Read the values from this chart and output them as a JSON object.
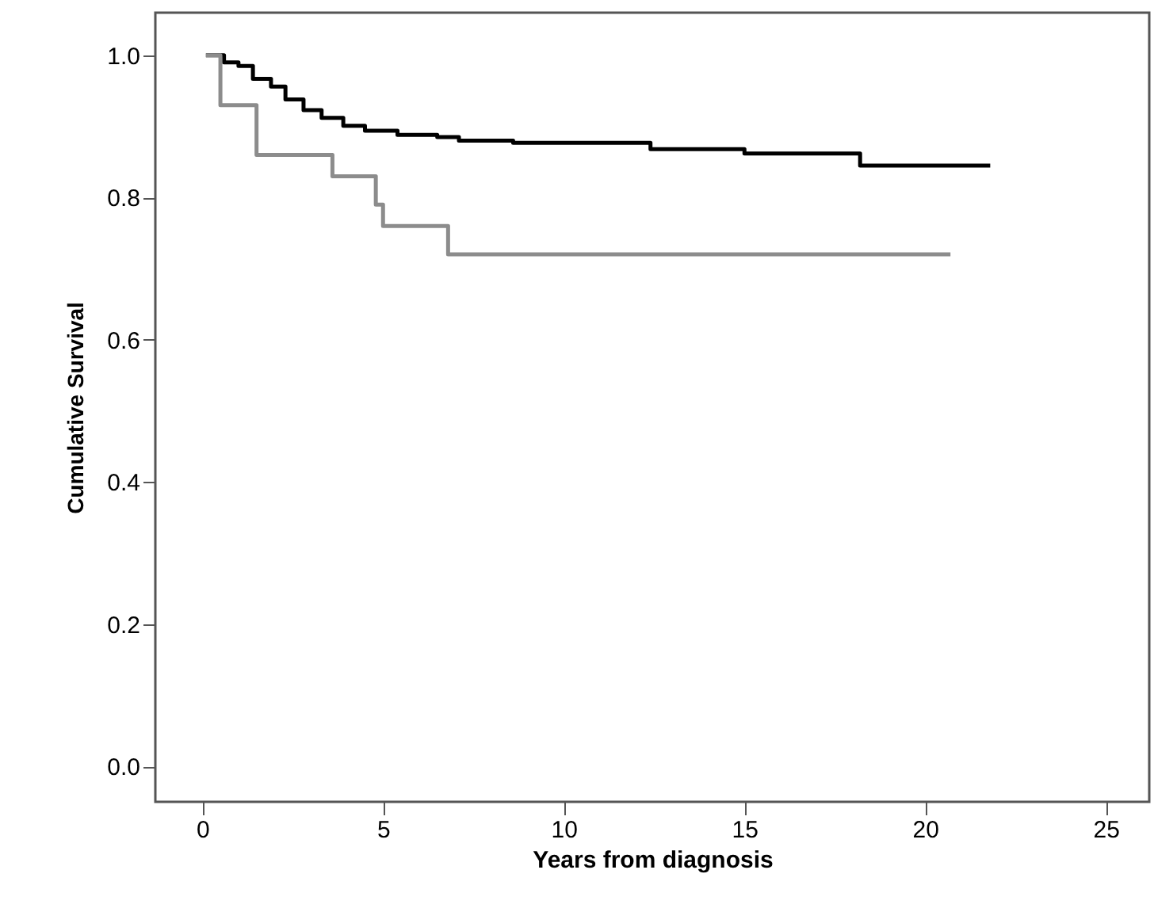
{
  "chart_data": {
    "type": "step",
    "xlabel": "Years from diagnosis",
    "ylabel": "Cumulative Survival",
    "xlim": [
      -1.3,
      26.2
    ],
    "ylim": [
      -0.05,
      1.06
    ],
    "xticks": [
      0,
      5,
      10,
      15,
      20,
      25
    ],
    "yticks": [
      {
        "value": 0,
        "label": "0.0"
      },
      {
        "value": 0.2,
        "label": "0.2"
      },
      {
        "value": 0.4,
        "label": "0.4"
      },
      {
        "value": 0.6,
        "label": "0.6"
      },
      {
        "value": 0.8,
        "label": "0.8"
      },
      {
        "value": 1,
        "label": "1.0"
      }
    ],
    "grid": false,
    "line_style": "solid",
    "series": [
      {
        "color": "#000000",
        "x": [
          0.1,
          0.6,
          1.0,
          1.4,
          1.9,
          2.3,
          2.8,
          3.3,
          3.9,
          4.5,
          5.4,
          6.5,
          7.1,
          8.6,
          12.4,
          15,
          18.2,
          21.8
        ],
        "values": [
          1.0,
          0.99,
          0.985,
          0.967,
          0.956,
          0.938,
          0.923,
          0.912,
          0.901,
          0.894,
          0.888,
          0.885,
          0.88,
          0.877,
          0.868,
          0.862,
          0.845,
          0.845
        ]
      },
      {
        "color": "#8c8c8c",
        "x": [
          0.1,
          0.5,
          1.5,
          3.6,
          4.8,
          5.0,
          6.8,
          20.7
        ],
        "values": [
          1.0,
          0.93,
          0.86,
          0.83,
          0.79,
          0.76,
          0.72,
          0.72
        ]
      }
    ]
  }
}
